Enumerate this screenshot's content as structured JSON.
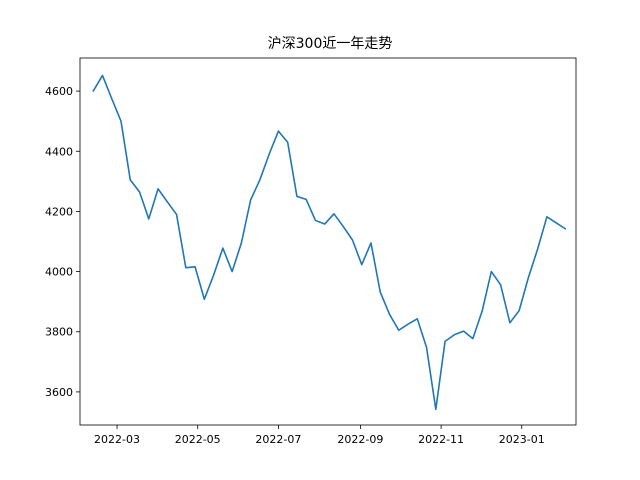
{
  "chart_data": {
    "type": "line",
    "title": "沪深300近一年走势",
    "xlabel": "",
    "ylabel": "",
    "grid": false,
    "legend": "none",
    "line_color": "#1f77b4",
    "x_axis": {
      "type": "date",
      "range": [
        "2022-02-01",
        "2023-02-11"
      ],
      "ticks": [
        {
          "date": "2022-03-01",
          "label": "2022-03"
        },
        {
          "date": "2022-05-01",
          "label": "2022-05"
        },
        {
          "date": "2022-07-01",
          "label": "2022-07"
        },
        {
          "date": "2022-09-01",
          "label": "2022-09"
        },
        {
          "date": "2022-11-01",
          "label": "2022-11"
        },
        {
          "date": "2023-01-01",
          "label": "2023-01"
        }
      ]
    },
    "y_axis": {
      "range": [
        3490,
        4710
      ],
      "ticks": [
        3600,
        3800,
        4000,
        4200,
        4400,
        4600
      ]
    },
    "series": [
      {
        "points": [
          [
            "2022-02-11",
            4600
          ],
          [
            "2022-02-18",
            4652
          ],
          [
            "2022-02-25",
            4575
          ],
          [
            "2022-03-04",
            4500
          ],
          [
            "2022-03-11",
            4305
          ],
          [
            "2022-03-18",
            4265
          ],
          [
            "2022-03-25",
            4175
          ],
          [
            "2022-04-01",
            4275
          ],
          [
            "2022-04-08",
            4232
          ],
          [
            "2022-04-15",
            4190
          ],
          [
            "2022-04-22",
            4013
          ],
          [
            "2022-04-29",
            4016
          ],
          [
            "2022-05-06",
            3908
          ],
          [
            "2022-05-13",
            3988
          ],
          [
            "2022-05-20",
            4078
          ],
          [
            "2022-05-27",
            4000
          ],
          [
            "2022-06-03",
            4095
          ],
          [
            "2022-06-10",
            4238
          ],
          [
            "2022-06-17",
            4305
          ],
          [
            "2022-06-24",
            4390
          ],
          [
            "2022-07-01",
            4467
          ],
          [
            "2022-07-08",
            4430
          ],
          [
            "2022-07-15",
            4250
          ],
          [
            "2022-07-22",
            4240
          ],
          [
            "2022-07-29",
            4170
          ],
          [
            "2022-08-05",
            4158
          ],
          [
            "2022-08-12",
            4192
          ],
          [
            "2022-08-19",
            4150
          ],
          [
            "2022-08-26",
            4105
          ],
          [
            "2022-09-02",
            4023
          ],
          [
            "2022-09-09",
            4095
          ],
          [
            "2022-09-16",
            3932
          ],
          [
            "2022-09-23",
            3858
          ],
          [
            "2022-09-30",
            3805
          ],
          [
            "2022-10-07",
            3825
          ],
          [
            "2022-10-14",
            3843
          ],
          [
            "2022-10-21",
            3748
          ],
          [
            "2022-10-28",
            3542
          ],
          [
            "2022-11-04",
            3768
          ],
          [
            "2022-11-11",
            3790
          ],
          [
            "2022-11-18",
            3802
          ],
          [
            "2022-11-25",
            3777
          ],
          [
            "2022-12-02",
            3868
          ],
          [
            "2022-12-09",
            4000
          ],
          [
            "2022-12-16",
            3956
          ],
          [
            "2022-12-23",
            3830
          ],
          [
            "2022-12-30",
            3870
          ],
          [
            "2023-01-06",
            3980
          ],
          [
            "2023-01-13",
            4075
          ],
          [
            "2023-01-20",
            4182
          ],
          [
            "2023-01-27",
            4162
          ],
          [
            "2023-02-03",
            4142
          ]
        ]
      }
    ]
  }
}
